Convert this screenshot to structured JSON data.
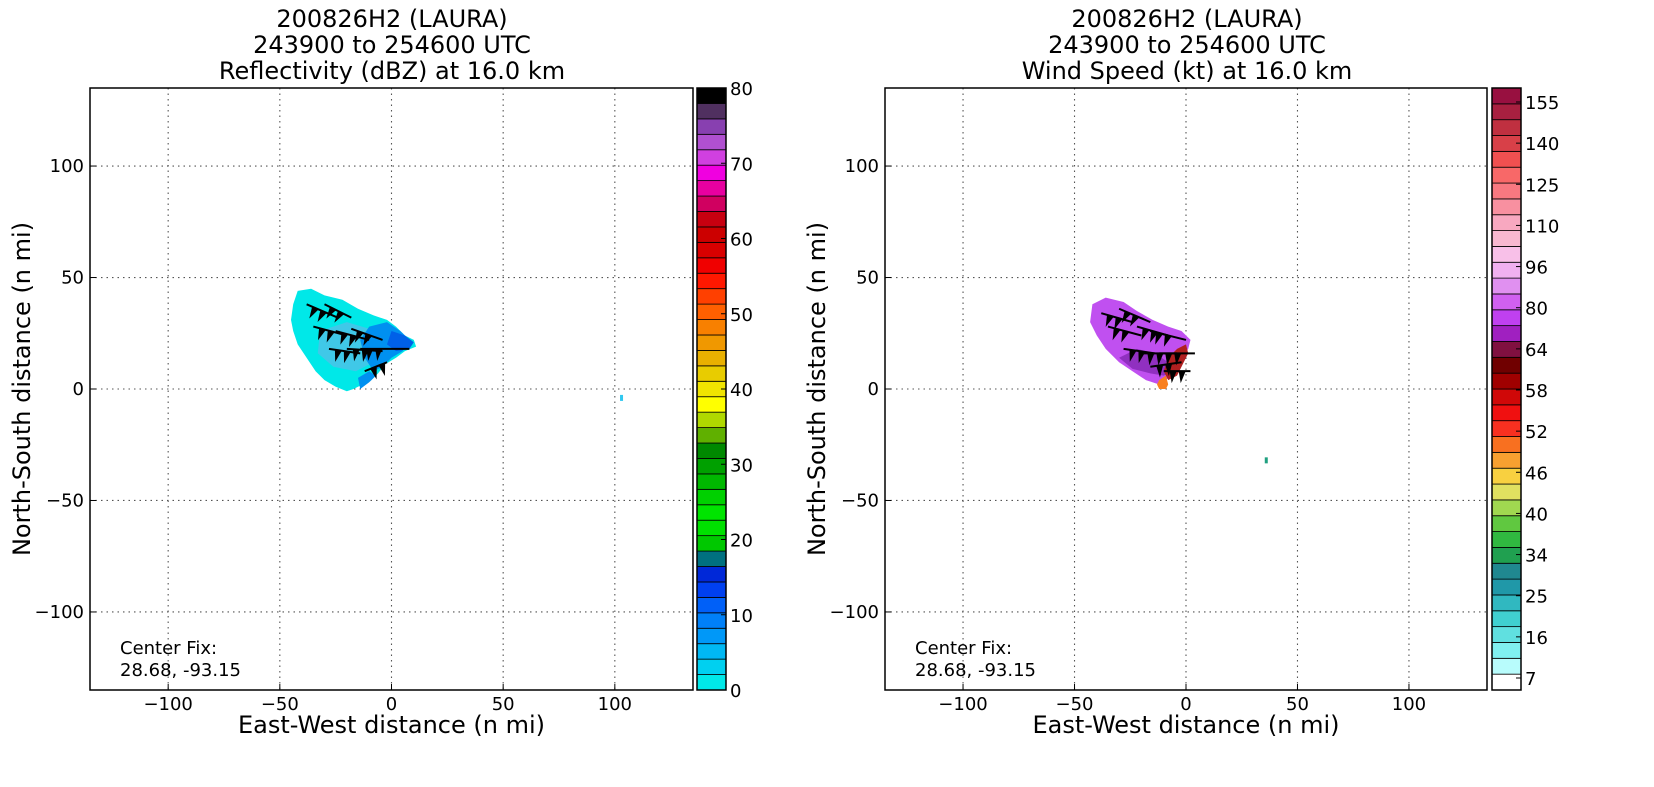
{
  "chart_data": [
    {
      "type": "heatmap",
      "title": [
        "200826H2 (LAURA)",
        "243900 to 254600 UTC",
        "Reflectivity (dBZ) at 16.0 km"
      ],
      "xlabel": "East-West distance (n mi)",
      "ylabel": "North-South distance (n mi)",
      "xlim": [
        -135,
        135
      ],
      "ylim": [
        -135,
        135
      ],
      "xticks": [
        -100,
        -50,
        0,
        50,
        100
      ],
      "yticks": [
        -100,
        -50,
        0,
        50,
        100
      ],
      "grid": true,
      "annotation": [
        "Center Fix:",
        "28.68, -93.15"
      ],
      "colorbar": {
        "min": 0,
        "max": 80,
        "tick_values": [
          0,
          10,
          20,
          30,
          40,
          50,
          60,
          70,
          80
        ],
        "tick_labels": [
          "0",
          "10",
          "20",
          "30",
          "40",
          "50",
          "60",
          "70",
          "80"
        ],
        "colors": [
          "#00e8e8",
          "#00d0f0",
          "#00b8f4",
          "#0098f8",
          "#0080f8",
          "#0060f8",
          "#0040f0",
          "#0028d8",
          "#007080",
          "#00c800",
          "#00e000",
          "#00e400",
          "#00d000",
          "#00b800",
          "#00a000",
          "#008800",
          "#60b000",
          "#b0d800",
          "#ffff00",
          "#f0e400",
          "#e8cc00",
          "#e8b000",
          "#f09800",
          "#f88000",
          "#ff6000",
          "#ff4000",
          "#ff1800",
          "#f00000",
          "#d80000",
          "#cc0000",
          "#c80010",
          "#d00060",
          "#e800a0",
          "#f000e0",
          "#d040e0",
          "#b050d0",
          "#8840b0",
          "#503060",
          "#000000"
        ]
      },
      "series": [
        {
          "name": "reflectivity field",
          "levels": [
            "#00e8e8",
            "#40c8e8",
            "#0090f0",
            "#0060e8"
          ]
        },
        {
          "name": "remote echo",
          "points": [
            {
              "x": 103,
              "y": -4
            }
          ]
        }
      ]
    },
    {
      "type": "heatmap",
      "title": [
        "200826H2 (LAURA)",
        "243900 to 254600 UTC",
        "Wind Speed (kt) at 16.0 km"
      ],
      "xlabel": "East-West distance (n mi)",
      "ylabel": "North-South distance (n mi)",
      "xlim": [
        -135,
        135
      ],
      "ylim": [
        -135,
        135
      ],
      "xticks": [
        -100,
        -50,
        0,
        50,
        100
      ],
      "yticks": [
        -100,
        -50,
        0,
        50,
        100
      ],
      "grid": true,
      "annotation": [
        "Center Fix:",
        "28.68, -93.15"
      ],
      "colorbar": {
        "tick_labels": [
          "7",
          "16",
          "25",
          "34",
          "40",
          "46",
          "52",
          "58",
          "64",
          "80",
          "96",
          "110",
          "125",
          "140",
          "155"
        ],
        "colors": [
          "#ffffff",
          "#b8fcfc",
          "#80f0f0",
          "#60e0e0",
          "#40d0d0",
          "#30b8c0",
          "#2098a8",
          "#208890",
          "#20a050",
          "#30b840",
          "#60c840",
          "#a0d850",
          "#e0e060",
          "#f8d040",
          "#f8a030",
          "#f87020",
          "#f83020",
          "#f01010",
          "#d00808",
          "#a00000",
          "#700000",
          "#801040",
          "#a020c0",
          "#c040f0",
          "#d060f0",
          "#e090f0",
          "#f0b0f0",
          "#f8c0e8",
          "#f8b8d0",
          "#f8a8c0",
          "#f890a0",
          "#f87880",
          "#f86868",
          "#f05050",
          "#d84048",
          "#c03040",
          "#a82040",
          "#981040"
        ]
      },
      "series": [
        {
          "name": "wind field",
          "levels": [
            "#c050f0",
            "#9030c0",
            "#b02020",
            "#f88020"
          ]
        },
        {
          "name": "remote echo",
          "points": [
            {
              "x": 36,
              "y": -32
            }
          ]
        }
      ]
    }
  ]
}
